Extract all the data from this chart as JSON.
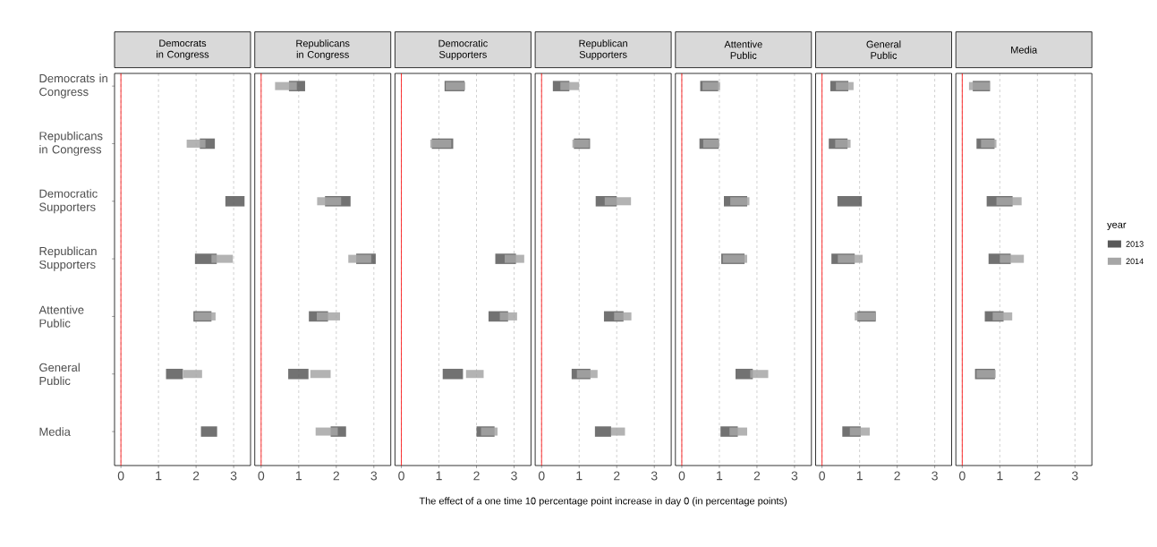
{
  "chart_data": [
    {
      "type": "bar",
      "orientation": "horizontal",
      "title": "Democrats in Congress",
      "categories": [
        "Democrats in Congress",
        "Republicans in Congress",
        "Democratic Supporters",
        "Republican Supporters",
        "Attentive Public",
        "General Public",
        "Media"
      ],
      "xlim": [
        -0.17,
        3.45
      ],
      "xticks": [
        0,
        1,
        2,
        3
      ],
      "grid": "x",
      "ref_lines": [
        {
          "axis": "x",
          "value": 0,
          "color": "#ff0000"
        }
      ],
      "series": [
        {
          "color": "#595959",
          "base": [
            null,
            2.1,
            2.78,
            1.97,
            1.93,
            1.2,
            2.13
          ],
          "values": [
            null,
            0.4,
            0.51,
            0.58,
            0.48,
            0.45,
            0.43
          ]
        },
        {
          "color": "#a6a6a6",
          "base": [
            null,
            1.75,
            null,
            2.41,
            1.96,
            1.66,
            null
          ],
          "values": [
            null,
            0.5,
            null,
            0.57,
            0.56,
            0.5,
            null
          ]
        }
      ]
    },
    {
      "type": "bar",
      "orientation": "horizontal",
      "title": "Republicans in Congress",
      "categories": [
        null,
        null,
        null,
        null,
        null,
        null,
        null
      ],
      "xlim": [
        -0.17,
        3.45
      ],
      "xticks": [
        0,
        1,
        2,
        3
      ],
      "grid": "x",
      "tick_labels": "x",
      "ref_lines": [
        {
          "axis": "x",
          "value": 0,
          "color": "#ff0000"
        }
      ],
      "series": [
        {
          "color": "#595959",
          "base": [
            0.74,
            null,
            1.7,
            2.53,
            1.27,
            0.72,
            1.85
          ],
          "values": [
            0.43,
            null,
            0.68,
            0.52,
            0.51,
            0.54,
            0.41
          ]
        },
        {
          "color": "#a6a6a6",
          "base": [
            0.37,
            null,
            1.49,
            2.32,
            1.48,
            1.31,
            1.45
          ],
          "values": [
            0.58,
            null,
            0.64,
            0.61,
            0.62,
            0.54,
            0.59
          ]
        }
      ]
    },
    {
      "type": "bar",
      "orientation": "horizontal",
      "title": "Democratic Supporters",
      "categories": [
        null,
        null,
        null,
        null,
        null,
        null,
        null
      ],
      "xlim": [
        -0.17,
        3.45
      ],
      "xticks": [
        0,
        1,
        2,
        3
      ],
      "grid": "x",
      "tick_labels": "x",
      "ref_lines": [
        {
          "axis": "x",
          "value": 0,
          "color": "#ff0000"
        }
      ],
      "series": [
        {
          "color": "#595959",
          "base": [
            1.15,
            0.81,
            null,
            2.5,
            2.32,
            1.1,
            2.0
          ],
          "values": [
            0.53,
            0.57,
            null,
            0.55,
            0.52,
            0.54,
            0.48
          ]
        },
        {
          "color": "#a6a6a6",
          "base": [
            1.18,
            0.77,
            null,
            2.75,
            2.62,
            1.72,
            2.12
          ],
          "values": [
            0.52,
            0.56,
            null,
            0.52,
            0.46,
            0.47,
            0.44
          ]
        }
      ]
    },
    {
      "type": "bar",
      "orientation": "horizontal",
      "title": "Republican Supporters",
      "xlabel": "The effect of a one time 10 percentage point increase in day 0 (in percentage points)",
      "categories": [
        null,
        null,
        null,
        null,
        null,
        null,
        null
      ],
      "xlim": [
        -0.17,
        3.45
      ],
      "xticks": [
        0,
        1,
        2,
        3
      ],
      "grid": "x",
      "tick_labels": "x",
      "ref_lines": [
        {
          "axis": "x",
          "value": 0,
          "color": "#ff0000"
        }
      ],
      "series": [
        {
          "color": "#595959",
          "base": [
            0.3,
            0.86,
            1.44,
            null,
            1.66,
            0.8,
            1.42
          ],
          "values": [
            0.44,
            0.43,
            0.56,
            null,
            0.52,
            0.5,
            0.43
          ]
        },
        {
          "color": "#a6a6a6",
          "base": [
            0.5,
            0.82,
            1.68,
            null,
            1.93,
            0.94,
            1.85
          ],
          "values": [
            0.5,
            0.45,
            0.7,
            null,
            0.46,
            0.55,
            0.37
          ]
        }
      ]
    },
    {
      "type": "bar",
      "orientation": "horizontal",
      "title": "Attentive Public",
      "categories": [
        null,
        null,
        null,
        null,
        null,
        null,
        null
      ],
      "xlim": [
        -0.17,
        3.45
      ],
      "xticks": [
        0,
        1,
        2,
        3
      ],
      "grid": "x",
      "tick_labels": "x",
      "ref_lines": [
        {
          "axis": "x",
          "value": 0,
          "color": "#ff0000"
        }
      ],
      "series": [
        {
          "color": "#595959",
          "base": [
            0.49,
            0.47,
            1.12,
            1.05,
            null,
            1.43,
            1.03
          ],
          "values": [
            0.48,
            0.51,
            0.62,
            0.62,
            null,
            0.46,
            0.46
          ]
        },
        {
          "color": "#a6a6a6",
          "base": [
            0.55,
            0.57,
            1.29,
            1.09,
            null,
            1.82,
            1.27
          ],
          "values": [
            0.47,
            0.43,
            0.51,
            0.65,
            null,
            0.48,
            0.47
          ]
        }
      ]
    },
    {
      "type": "bar",
      "orientation": "horizontal",
      "title": "General Public",
      "categories": [
        null,
        null,
        null,
        null,
        null,
        null,
        null
      ],
      "xlim": [
        -0.17,
        3.45
      ],
      "xticks": [
        0,
        1,
        2,
        3
      ],
      "grid": "x",
      "tick_labels": "x",
      "ref_lines": [
        {
          "axis": "x",
          "value": 0,
          "color": "#ff0000"
        }
      ],
      "series": [
        {
          "color": "#595959",
          "base": [
            0.22,
            0.18,
            0.41,
            0.25,
            0.94,
            null,
            0.54
          ],
          "values": [
            0.48,
            0.5,
            0.65,
            0.62,
            0.49,
            null,
            0.49
          ]
        },
        {
          "color": "#a6a6a6",
          "base": [
            0.37,
            0.35,
            null,
            0.42,
            0.87,
            null,
            0.74
          ],
          "values": [
            0.47,
            0.41,
            null,
            0.66,
            0.55,
            null,
            0.53
          ]
        }
      ]
    },
    {
      "type": "bar",
      "orientation": "horizontal",
      "title": "Media",
      "legend_title": "year",
      "legend": "right",
      "categories": [
        null,
        null,
        null,
        null,
        null,
        null,
        null
      ],
      "xlim": [
        -0.17,
        3.45
      ],
      "xticks": [
        0,
        1,
        2,
        3
      ],
      "grid": "x",
      "tick_labels": "x",
      "ref_lines": [
        {
          "axis": "x",
          "value": 0,
          "color": "#ff0000"
        }
      ],
      "series": [
        {
          "name": "2013",
          "color": "#595959",
          "base": [
            0.28,
            0.38,
            0.65,
            0.7,
            0.6,
            0.34,
            null
          ],
          "values": [
            0.46,
            0.48,
            0.69,
            0.59,
            0.5,
            0.53,
            null
          ]
        },
        {
          "name": "2014",
          "color": "#a6a6a6",
          "base": [
            0.18,
            0.5,
            0.91,
            1.0,
            0.81,
            0.38,
            null
          ],
          "values": [
            0.55,
            0.41,
            0.67,
            0.64,
            0.52,
            0.51,
            null
          ]
        }
      ]
    }
  ]
}
